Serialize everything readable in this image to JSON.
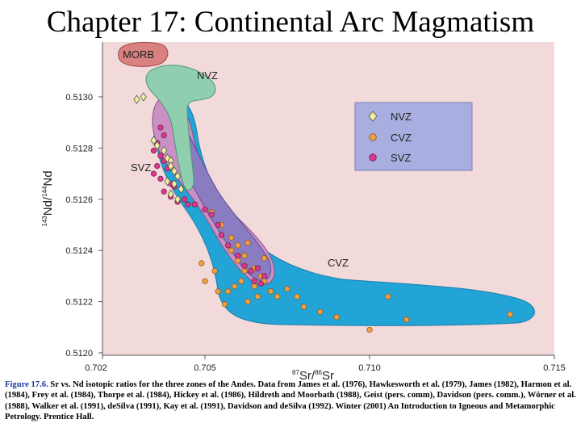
{
  "title": "Chapter 17: Continental Arc Magmatism",
  "chart_data": {
    "type": "scatter",
    "xlabel_sup": "87",
    "xlabel_main": "Sr/",
    "xlabel_sup2": "86",
    "xlabel_end": "Sr",
    "ylabel_sup": "143",
    "ylabel_main": "Nd/",
    "ylabel_sup2": "144",
    "ylabel_end": "Nd",
    "xlim": [
      0.702,
      0.715
    ],
    "ylim": [
      0.512,
      0.5131
    ],
    "x_ticks": [
      "0.702",
      "0.705",
      "0.710",
      "0.715"
    ],
    "x_tick_values": [
      0.702,
      0.705,
      0.71,
      0.715
    ],
    "y_ticks": [
      "0.5120",
      "0.5122",
      "0.5124",
      "0.5126",
      "0.5128",
      "0.5130"
    ],
    "y_tick_values": [
      0.512,
      0.5122,
      0.5124,
      0.5126,
      0.5128,
      0.513
    ],
    "zone_labels": {
      "morb": "MORB",
      "nvz": "NVZ",
      "svz": "SVZ",
      "cvz": "CVZ"
    },
    "legend": [
      "NVZ",
      "CVZ",
      "SVZ"
    ],
    "colors": {
      "background": "#f2d9da",
      "morb": "#d98080",
      "nvz_field": "#8fcfb0",
      "svz_field": "#c990c4",
      "cvz_field": "#22a4d6",
      "overlap_field": "#8a7cc0",
      "legend_box": "#a8aee0",
      "nvz_point": "#f0f09a",
      "cvz_point": "#f0a040",
      "svz_point": "#d63a8a"
    },
    "series": [
      {
        "name": "NVZ",
        "marker": "diamond",
        "x": [
          0.703,
          0.7032,
          0.7035,
          0.7036,
          0.7038,
          0.7039,
          0.704,
          0.704,
          0.7041,
          0.7042,
          0.7039,
          0.7041,
          0.7043,
          0.704,
          0.7042
        ],
        "y": [
          0.51299,
          0.513,
          0.51283,
          0.51281,
          0.51279,
          0.51276,
          0.51275,
          0.51273,
          0.51271,
          0.51269,
          0.51267,
          0.51266,
          0.51264,
          0.51262,
          0.5126
        ]
      },
      {
        "name": "CVZ",
        "marker": "circle",
        "x": [
          0.7052,
          0.7055,
          0.7058,
          0.706,
          0.7062,
          0.7065,
          0.7067,
          0.7068,
          0.705,
          0.7054,
          0.7057,
          0.7059,
          0.7061,
          0.7063,
          0.7066,
          0.7072,
          0.7075,
          0.7078,
          0.708,
          0.7085,
          0.709,
          0.71,
          0.7105,
          0.711,
          0.7138,
          0.7068,
          0.7063,
          0.7058,
          0.7053,
          0.7049,
          0.7056,
          0.7062,
          0.706,
          0.7065,
          0.707
        ],
        "y": [
          0.51255,
          0.5125,
          0.51245,
          0.51242,
          0.51238,
          0.51233,
          0.5123,
          0.51228,
          0.51228,
          0.51224,
          0.51224,
          0.51226,
          0.51228,
          0.5122,
          0.51222,
          0.51222,
          0.51225,
          0.51222,
          0.51218,
          0.51216,
          0.51214,
          0.51209,
          0.51222,
          0.51213,
          0.51215,
          0.51237,
          0.51243,
          0.5124,
          0.51232,
          0.51235,
          0.51219,
          0.51232,
          0.51236,
          0.51226,
          0.51224
        ]
      },
      {
        "name": "SVZ",
        "marker": "circle",
        "x": [
          0.7037,
          0.7038,
          0.7036,
          0.7035,
          0.7037,
          0.7038,
          0.7036,
          0.7035,
          0.7039,
          0.7037,
          0.704,
          0.7038,
          0.7041,
          0.704,
          0.7042,
          0.7044,
          0.7045,
          0.7047,
          0.705,
          0.7052,
          0.7054,
          0.7055,
          0.7057,
          0.706,
          0.7062,
          0.7064,
          0.7066,
          0.7068,
          0.7065,
          0.7067
        ],
        "y": [
          0.51288,
          0.51285,
          0.51282,
          0.51279,
          0.51277,
          0.51275,
          0.51273,
          0.5127,
          0.51272,
          0.51268,
          0.51266,
          0.51263,
          0.51265,
          0.51261,
          0.51259,
          0.5126,
          0.51258,
          0.51258,
          0.51256,
          0.51254,
          0.5125,
          0.51246,
          0.51242,
          0.51238,
          0.51234,
          0.51232,
          0.51233,
          0.5123,
          0.51228,
          0.51227
        ]
      }
    ]
  },
  "caption": {
    "fig_label": "Figure 17.6.",
    "text": " Sr vs. Nd isotopic ratios for the three zones of the Andes. Data from James et al. (1976), Hawkesworth et al. (1979), James (1982), Harmon et al. (1984), Frey et al. (1984), Thorpe et al. (1984), Hickey et al. (1986), Hildreth and Moorbath (1988), Geist (pers. comm), Davidson (pers. comm.), Wörner et al. (1988), Walker et al. (1991), deSilva (1991), Kay et al. (1991), Davidson and deSilva (1992).  Winter (2001) An Introduction to Igneous and Metamorphic Petrology. Prentice Hall."
  }
}
